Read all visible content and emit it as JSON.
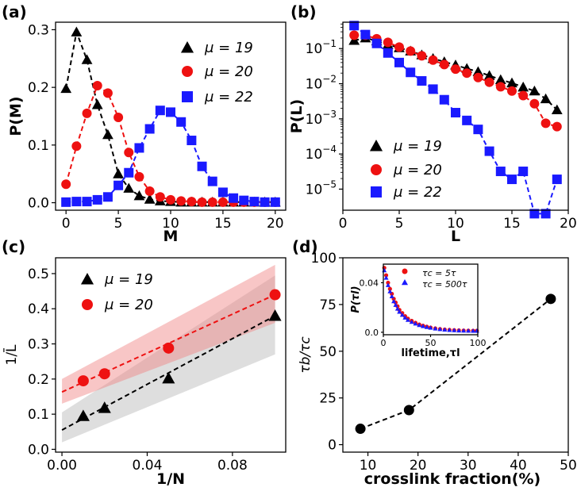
{
  "colors": {
    "black": "#000000",
    "red": "#ee1111",
    "blue": "#1a1aff",
    "red_band": "#f08080",
    "gray_band": "#a0a0a0"
  },
  "chart_data": [
    {
      "panel": "(a)",
      "type": "line",
      "xlabel": "M",
      "ylabel": "P(M)",
      "xlim": [
        -1,
        21
      ],
      "ylim": [
        -0.013,
        0.313
      ],
      "xticks": [
        0,
        5,
        10,
        15,
        20
      ],
      "yticks": [
        0.0,
        0.1,
        0.2,
        0.3
      ],
      "xtick_labels": [
        "0",
        "5",
        "10",
        "15",
        "20"
      ],
      "ytick_labels": [
        "0.0",
        "0.1",
        "0.2",
        "0.3"
      ],
      "legend_position": "top-right",
      "series": [
        {
          "name": "μ = 19",
          "mu": "19",
          "marker": "triangle",
          "color": "black",
          "x": [
            0,
            1,
            2,
            3,
            4,
            5,
            6,
            7,
            8,
            9,
            10,
            11,
            12,
            13,
            14,
            15,
            16,
            17,
            18,
            19,
            20
          ],
          "y": [
            0.198,
            0.296,
            0.248,
            0.17,
            0.118,
            0.05,
            0.025,
            0.012,
            0.006,
            0.003,
            0.002,
            0.001,
            0.001,
            0.001,
            0.001,
            0.001,
            0.001,
            0.001,
            0.001,
            0.001,
            0.001
          ]
        },
        {
          "name": "μ = 20",
          "mu": "20",
          "marker": "circle",
          "color": "red",
          "x": [
            0,
            1,
            2,
            3,
            4,
            5,
            6,
            7,
            8,
            9,
            10,
            11,
            12,
            13,
            14,
            15,
            16,
            17,
            18,
            19,
            20
          ],
          "y": [
            0.032,
            0.098,
            0.155,
            0.203,
            0.19,
            0.148,
            0.087,
            0.045,
            0.02,
            0.01,
            0.005,
            0.003,
            0.002,
            0.001,
            0.001,
            0.001,
            0.001,
            0.001,
            0.001,
            0.001,
            0.001
          ]
        },
        {
          "name": "μ = 22",
          "mu": "22",
          "marker": "square",
          "color": "blue",
          "x": [
            0,
            1,
            2,
            3,
            4,
            5,
            6,
            7,
            8,
            9,
            10,
            11,
            12,
            13,
            14,
            15,
            16,
            17,
            18,
            19,
            20
          ],
          "y": [
            0.001,
            0.002,
            0.002,
            0.005,
            0.01,
            0.03,
            0.052,
            0.095,
            0.128,
            0.16,
            0.157,
            0.14,
            0.108,
            0.063,
            0.037,
            0.018,
            0.008,
            0.004,
            0.002,
            0.001,
            0.001
          ]
        }
      ]
    },
    {
      "panel": "(b)",
      "type": "line",
      "yscale": "log",
      "xlabel": "L",
      "ylabel": "P(L)",
      "xlim": [
        0,
        20
      ],
      "ylim_log10": [
        -5.6,
        -0.25
      ],
      "xticks": [
        0,
        5,
        10,
        15,
        20
      ],
      "xtick_labels": [
        "0",
        "5",
        "10",
        "15",
        "20"
      ],
      "ytick_exponents": [
        -5,
        -4,
        -3,
        -2,
        -1
      ],
      "ytick_base": "10",
      "legend_position": "bottom-left",
      "series": [
        {
          "name": "μ = 19",
          "mu": "19",
          "marker": "triangle",
          "color": "black",
          "x": [
            1,
            2,
            3,
            4,
            5,
            6,
            7,
            8,
            9,
            10,
            11,
            12,
            13,
            14,
            15,
            16,
            17,
            18,
            19
          ],
          "y": [
            0.17,
            0.2,
            0.165,
            0.13,
            0.105,
            0.085,
            0.066,
            0.052,
            0.042,
            0.034,
            0.027,
            0.022,
            0.017,
            0.013,
            0.0105,
            0.008,
            0.0062,
            0.0037,
            0.0018
          ]
        },
        {
          "name": "μ = 20",
          "mu": "20",
          "marker": "circle",
          "color": "red",
          "x": [
            1,
            2,
            3,
            4,
            5,
            6,
            7,
            8,
            9,
            10,
            11,
            12,
            13,
            14,
            15,
            16,
            17,
            18,
            19
          ],
          "y": [
            0.24,
            0.24,
            0.19,
            0.15,
            0.11,
            0.085,
            0.062,
            0.047,
            0.035,
            0.026,
            0.02,
            0.015,
            0.011,
            0.0082,
            0.0062,
            0.0046,
            0.0027,
            0.00075,
            0.0006
          ]
        },
        {
          "name": "μ = 22",
          "mu": "22",
          "marker": "square",
          "color": "blue",
          "x": [
            1,
            2,
            3,
            4,
            5,
            6,
            7,
            8,
            9,
            10,
            11,
            12,
            13,
            14,
            15,
            16,
            17,
            18,
            19
          ],
          "y": [
            0.45,
            0.25,
            0.14,
            0.075,
            0.04,
            0.021,
            0.012,
            0.007,
            0.0035,
            0.0015,
            0.0009,
            0.0005,
            0.00012,
            3.2e-05,
            1.9e-05,
            3.2e-05,
            2e-06,
            2e-06,
            1.9e-05
          ]
        }
      ]
    },
    {
      "panel": "(c)",
      "type": "scatter",
      "xlabel": "1/N",
      "ylabel": "1/L̄",
      "xlim": [
        -0.003,
        0.105
      ],
      "ylim": [
        -0.008,
        0.545
      ],
      "xticks": [
        0.0,
        0.04,
        0.08
      ],
      "xtick_labels": [
        "0.00",
        "0.04",
        "0.08"
      ],
      "yticks": [
        0.0,
        0.1,
        0.2,
        0.3,
        0.4,
        0.5
      ],
      "ytick_labels": [
        "0.0",
        "0.1",
        "0.2",
        "0.3",
        "0.4",
        "0.5"
      ],
      "legend_position": "top-left",
      "series": [
        {
          "name": "μ = 19",
          "mu": "19",
          "marker": "triangle",
          "color": "black",
          "x": [
            0.01,
            0.02,
            0.05,
            0.1
          ],
          "y": [
            0.095,
            0.118,
            0.202,
            0.38
          ],
          "fit": {
            "x": [
              0.0,
              0.1
            ],
            "y": [
              0.055,
              0.38
            ]
          },
          "band": {
            "x": [
              0.0,
              0.1
            ],
            "upper": [
              0.105,
              0.495
            ],
            "lower": [
              0.02,
              0.27
            ]
          }
        },
        {
          "name": "μ = 20",
          "mu": "20",
          "marker": "circle",
          "color": "red",
          "x": [
            0.01,
            0.02,
            0.05,
            0.1
          ],
          "y": [
            0.195,
            0.215,
            0.288,
            0.44
          ],
          "fit": {
            "x": [
              0.0,
              0.1
            ],
            "y": [
              0.163,
              0.44
            ]
          },
          "band": {
            "x": [
              0.0,
              0.1
            ],
            "upper": [
              0.2,
              0.525
            ],
            "lower": [
              0.13,
              0.36
            ]
          }
        }
      ]
    },
    {
      "panel": "(d)",
      "type": "line",
      "xlabel": "crosslink fraction(%)",
      "ylabel": "τb/τc",
      "xlim": [
        5,
        50
      ],
      "ylim": [
        -4,
        100
      ],
      "xticks": [
        10,
        20,
        30,
        40,
        50
      ],
      "xtick_labels": [
        "10",
        "20",
        "30",
        "40",
        "50"
      ],
      "yticks": [
        0,
        25,
        50,
        75,
        100
      ],
      "ytick_labels": [
        "0",
        "25",
        "50",
        "75",
        "100"
      ],
      "series": [
        {
          "name": "τb/τc",
          "marker": "circle",
          "color": "black",
          "x": [
            8.5,
            18.2,
            46.5
          ],
          "y": [
            8.5,
            18.5,
            78.0
          ]
        }
      ],
      "inset": {
        "type": "scatter",
        "xlabel": "lifetime,τl",
        "ylabel": "P(τl)",
        "xlim": [
          0,
          100
        ],
        "ylim": [
          -0.002,
          0.055
        ],
        "xticks": [
          0,
          50,
          100
        ],
        "xtick_labels": [
          "0",
          "50",
          "100"
        ],
        "yticks": [
          0.0,
          0.04
        ],
        "ytick_labels": [
          "0.0",
          "0.04"
        ],
        "legend_position": "top-right",
        "series": [
          {
            "name": "τc = 5τ",
            "sub": "c",
            "value": "5τ",
            "marker": "circle",
            "color": "red",
            "x": [
              1,
              3,
              5,
              7,
              9,
              11,
              13,
              15,
              17,
              20,
              23,
              26,
              30,
              34,
              38,
              42,
              46,
              50,
              55,
              60,
              65,
              70,
              75,
              80,
              85,
              90,
              95,
              99
            ],
            "y": [
              0.052,
              0.046,
              0.04,
              0.035,
              0.031,
              0.027,
              0.024,
              0.021,
              0.018,
              0.0155,
              0.013,
              0.011,
              0.0092,
              0.0076,
              0.0063,
              0.0053,
              0.0045,
              0.0038,
              0.0031,
              0.0026,
              0.0022,
              0.0019,
              0.0017,
              0.0015,
              0.0014,
              0.0013,
              0.0012,
              0.0012
            ]
          },
          {
            "name": "τc = 500τ",
            "sub": "c",
            "value": "500τ",
            "marker": "triangle",
            "color": "blue",
            "x": [
              1,
              3,
              5,
              7,
              9,
              11,
              13,
              15,
              17,
              20,
              23,
              26,
              30,
              34,
              38,
              42,
              46,
              50,
              55,
              60,
              65,
              70,
              75,
              80,
              85,
              90,
              95,
              99
            ],
            "y": [
              0.05,
              0.044,
              0.038,
              0.033,
              0.029,
              0.025,
              0.022,
              0.019,
              0.0165,
              0.014,
              0.0118,
              0.0099,
              0.0083,
              0.007,
              0.0058,
              0.0049,
              0.0042,
              0.0036,
              0.003,
              0.0025,
              0.0021,
              0.0018,
              0.0016,
              0.0014,
              0.0013,
              0.0012,
              0.0011,
              0.0011
            ]
          }
        ]
      }
    }
  ]
}
